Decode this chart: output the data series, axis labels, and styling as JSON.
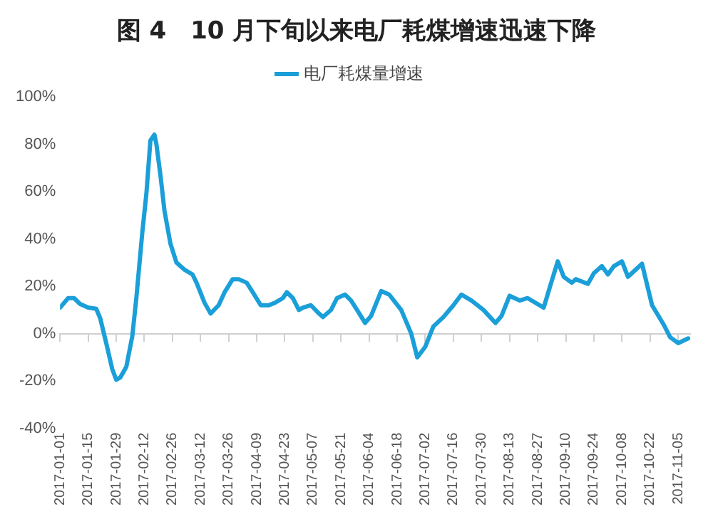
{
  "chart_data": {
    "type": "line",
    "title": "图 4　10 月下旬以来电厂耗煤增速迅速下降",
    "x": [
      "2017-01-01",
      "2017-01-05",
      "2017-01-08",
      "2017-01-11",
      "2017-01-15",
      "2017-01-19",
      "2017-01-21",
      "2017-01-24",
      "2017-01-27",
      "2017-01-29",
      "2017-01-31",
      "2017-02-03",
      "2017-02-06",
      "2017-02-08",
      "2017-02-11",
      "2017-02-13",
      "2017-02-15",
      "2017-02-17",
      "2017-02-18",
      "2017-02-20",
      "2017-02-22",
      "2017-02-25",
      "2017-02-28",
      "2017-03-04",
      "2017-03-08",
      "2017-03-10",
      "2017-03-14",
      "2017-03-17",
      "2017-03-21",
      "2017-03-24",
      "2017-03-28",
      "2017-03-31",
      "2017-04-04",
      "2017-04-07",
      "2017-04-11",
      "2017-04-15",
      "2017-04-18",
      "2017-04-22",
      "2017-04-24",
      "2017-04-27",
      "2017-04-30",
      "2017-05-02",
      "2017-05-06",
      "2017-05-10",
      "2017-05-12",
      "2017-05-16",
      "2017-05-19",
      "2017-05-23",
      "2017-05-26",
      "2017-05-29",
      "2017-06-02",
      "2017-06-05",
      "2017-06-10",
      "2017-06-14",
      "2017-06-20",
      "2017-06-25",
      "2017-06-28",
      "2017-07-02",
      "2017-07-06",
      "2017-07-11",
      "2017-07-16",
      "2017-07-20",
      "2017-07-25",
      "2017-07-31",
      "2017-08-06",
      "2017-08-09",
      "2017-08-13",
      "2017-08-18",
      "2017-08-22",
      "2017-08-30",
      "2017-09-02",
      "2017-09-06",
      "2017-09-09",
      "2017-09-13",
      "2017-09-15",
      "2017-09-21",
      "2017-09-24",
      "2017-09-28",
      "2017-10-01",
      "2017-10-04",
      "2017-10-08",
      "2017-10-11",
      "2017-10-18",
      "2017-10-23",
      "2017-10-29",
      "2017-11-01",
      "2017-11-05",
      "2017-11-10"
    ],
    "series": [
      {
        "name": "电厂耗煤量增速",
        "color": "#1a9fd9",
        "values": [
          11,
          15,
          15,
          12.5,
          11,
          10.5,
          6.5,
          -4,
          -15,
          -19.5,
          -18.5,
          -14,
          -1,
          15,
          43,
          59,
          81.5,
          84,
          80,
          67,
          52,
          38,
          30,
          27,
          25,
          21.5,
          13,
          8.5,
          12,
          17.5,
          23,
          23,
          21.5,
          17.5,
          12,
          12,
          13,
          15,
          17.5,
          15,
          10,
          11,
          12,
          8.5,
          7,
          10,
          15,
          16.5,
          14,
          10,
          4.5,
          7.5,
          18,
          16.5,
          10,
          0,
          -10,
          -5.5,
          3,
          7,
          12,
          16.5,
          14,
          10,
          4.5,
          7.5,
          16,
          14,
          15,
          11,
          19.5,
          30.5,
          24,
          21.5,
          23,
          21,
          25.5,
          28.5,
          25,
          28.5,
          30.5,
          24,
          29.5,
          12,
          3.5,
          -1.5,
          -4,
          -2
        ]
      }
    ],
    "xlim": [
      "2017-01-01",
      "2017-11-11"
    ],
    "xticks": [
      "2017-01-01",
      "2017-01-15",
      "2017-01-29",
      "2017-02-12",
      "2017-02-26",
      "2017-03-12",
      "2017-03-26",
      "2017-04-09",
      "2017-04-23",
      "2017-05-07",
      "2017-05-21",
      "2017-06-04",
      "2017-06-18",
      "2017-07-02",
      "2017-07-16",
      "2017-07-30",
      "2017-08-13",
      "2017-08-27",
      "2017-09-10",
      "2017-09-24",
      "2017-10-08",
      "2017-10-22",
      "2017-11-05"
    ],
    "ylim": [
      -40,
      100
    ],
    "yticks": [
      {
        "value": -40,
        "label": "-40%"
      },
      {
        "value": -20,
        "label": "-20%"
      },
      {
        "value": 0,
        "label": "0%"
      },
      {
        "value": 20,
        "label": "20%"
      },
      {
        "value": 40,
        "label": "40%"
      },
      {
        "value": 60,
        "label": "60%"
      },
      {
        "value": 80,
        "label": "80%"
      },
      {
        "value": 100,
        "label": "100%"
      }
    ],
    "grid": false,
    "ref_lines": [
      {
        "axis": "y",
        "value": 0,
        "color": "#d0d0d0"
      }
    ],
    "legend": "top",
    "marker": "none",
    "line_style": "solid"
  }
}
